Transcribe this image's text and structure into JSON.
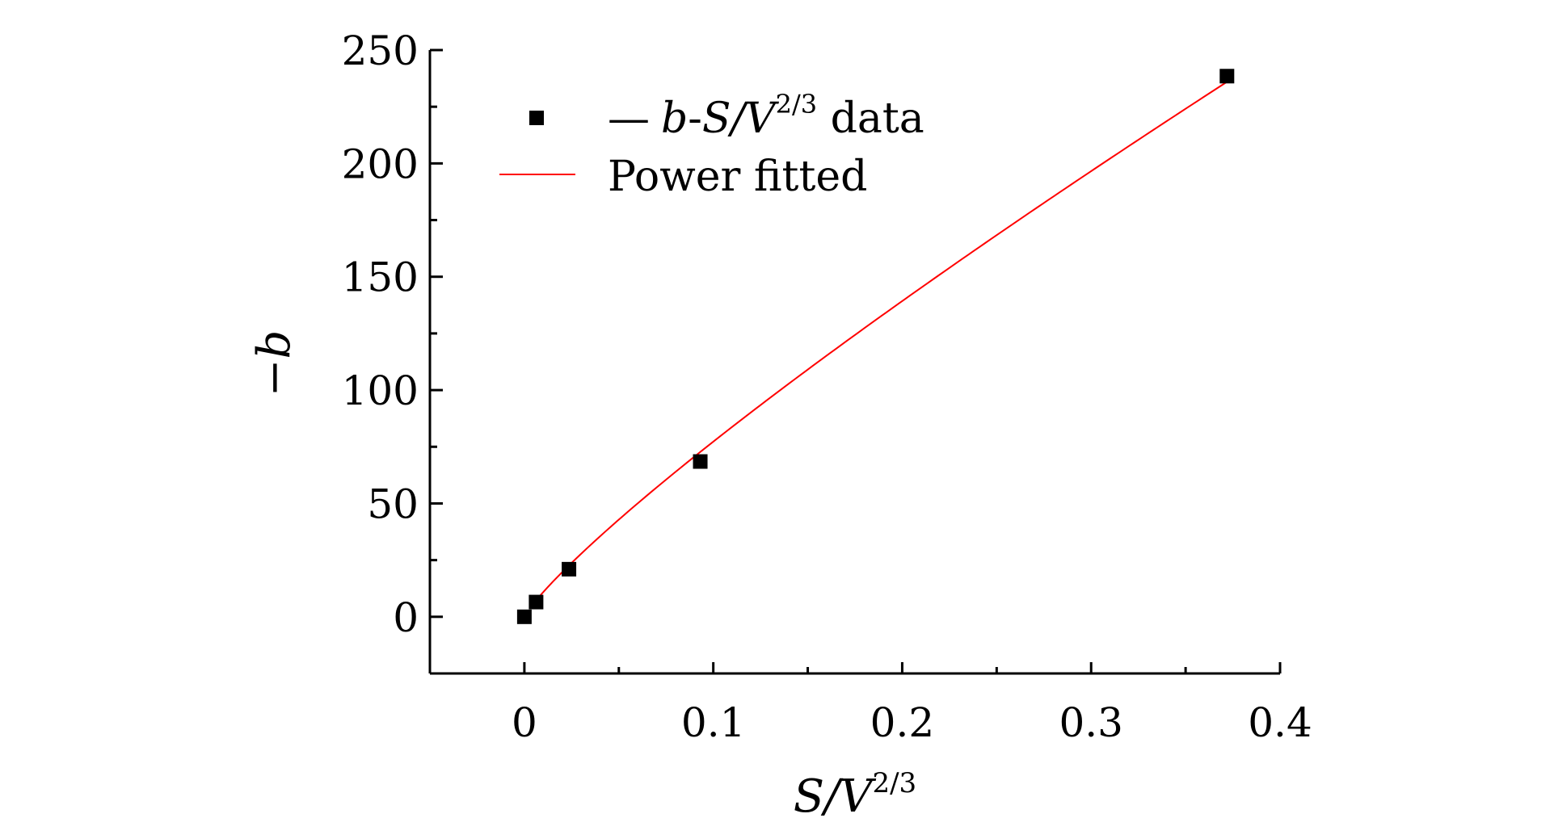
{
  "chart_data": {
    "type": "scatter",
    "title": "",
    "xlabel": {
      "base": "S/V",
      "sup": "2/3"
    },
    "ylabel": "−b",
    "xlim": [
      -0.05,
      0.4
    ],
    "ylim": [
      -25,
      250
    ],
    "x_ticks": [
      0,
      0.1,
      0.2,
      0.3,
      0.4
    ],
    "x_tick_labels": [
      "0",
      "0.1",
      "0.2",
      "0.3",
      "0.4"
    ],
    "y_ticks": [
      0,
      50,
      100,
      150,
      200,
      250
    ],
    "y_tick_labels": [
      "0",
      "50",
      "100",
      "150",
      "200",
      "250"
    ],
    "grid": false,
    "legend_position": "top-left",
    "series": [
      {
        "name": "— b-S/V2/3 data",
        "legend": {
          "dash": "—",
          "b": "b",
          "sep": "-",
          "sv": "S/V",
          "sup": "2/3",
          "suffix": " data"
        },
        "kind": "scatter",
        "marker": "square",
        "color": "#000000",
        "x": [
          0.0,
          0.0062,
          0.0236,
          0.0931,
          0.3719
        ],
        "y": [
          0.0,
          6.5,
          21.0,
          68.5,
          238.5
        ]
      },
      {
        "name": "Power fitted",
        "kind": "line",
        "color": "#ff0000",
        "model": {
          "form": "a*x^b",
          "a": 547,
          "b": 0.85
        },
        "x_range": [
          0.0062,
          0.3719
        ]
      }
    ]
  }
}
